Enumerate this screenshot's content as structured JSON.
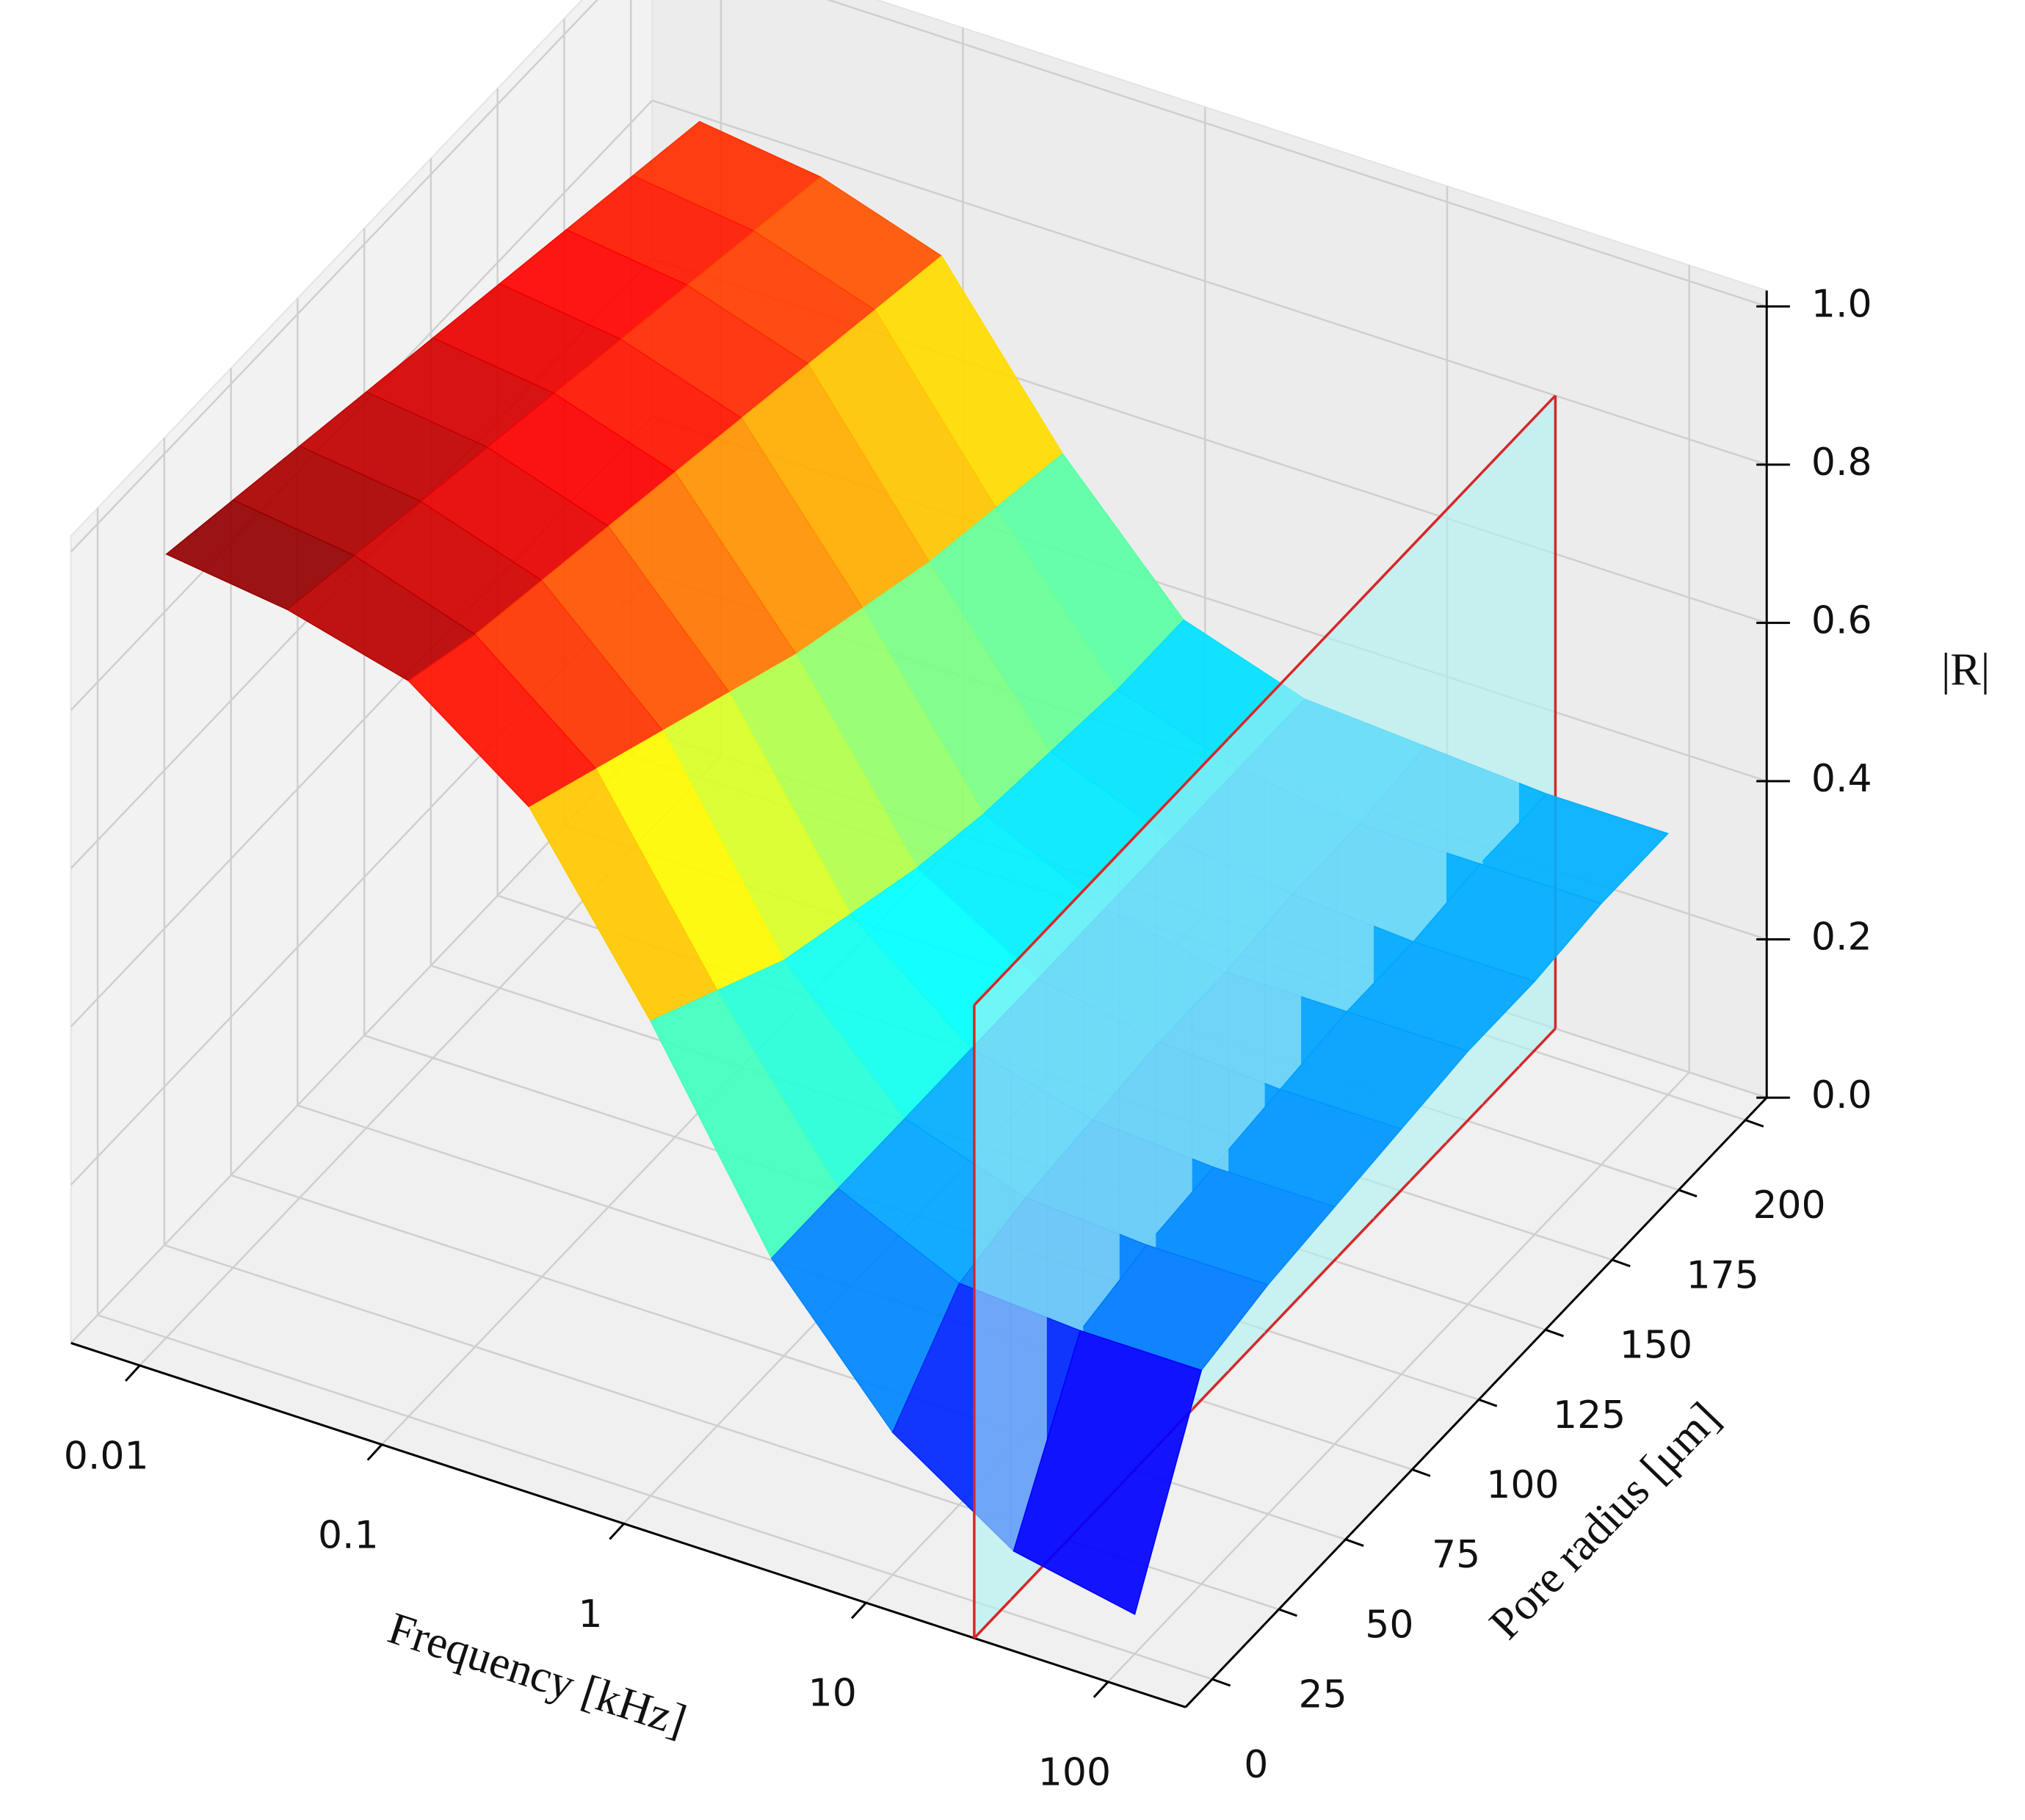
{
  "chart_data": {
    "type": "surface3d",
    "xlabel": "Frequency [kHz]",
    "ylabel": "Pore radius [μm]",
    "zlabel": "|R|",
    "xscale": "log",
    "xlim": [
      0.0052,
      209
    ],
    "ylim": [
      -10,
      208
    ],
    "zlim": [
      0,
      1.02
    ],
    "xticks": [
      0.01,
      0.1,
      1,
      10,
      100
    ],
    "yticks": [
      0,
      25,
      50,
      75,
      100,
      125,
      150,
      175,
      200
    ],
    "zticks": [
      {
        "value": 0,
        "label": "0.0"
      },
      0.2,
      0.4,
      0.6,
      0.8,
      {
        "value": 1,
        "label": "1.0"
      }
    ],
    "grid": true,
    "colormap": "jet",
    "x": [
      0.01,
      0.0316,
      0.1,
      0.316,
      1,
      3.16,
      10,
      31.6,
      100
    ],
    "y": [
      0,
      25,
      50,
      75,
      100,
      125,
      150,
      175,
      200
    ],
    "z": [
      [
        0.99,
        0.97,
        0.93,
        0.82,
        0.6,
        0.35,
        0.18,
        0.08,
        0.05
      ],
      [
        0.97,
        0.95,
        0.9,
        0.78,
        0.55,
        0.35,
        0.28,
        0.27,
        0.27
      ],
      [
        0.95,
        0.93,
        0.88,
        0.74,
        0.5,
        0.35,
        0.3,
        0.29,
        0.29
      ],
      [
        0.93,
        0.91,
        0.86,
        0.7,
        0.47,
        0.35,
        0.31,
        0.3,
        0.3
      ],
      [
        0.91,
        0.89,
        0.84,
        0.66,
        0.44,
        0.35,
        0.32,
        0.31,
        0.31
      ],
      [
        0.89,
        0.87,
        0.82,
        0.63,
        0.42,
        0.35,
        0.32,
        0.32,
        0.32
      ],
      [
        0.87,
        0.85,
        0.8,
        0.6,
        0.41,
        0.35,
        0.33,
        0.32,
        0.32
      ],
      [
        0.85,
        0.83,
        0.78,
        0.58,
        0.4,
        0.35,
        0.33,
        0.33,
        0.33
      ],
      [
        0.83,
        0.81,
        0.76,
        0.56,
        0.4,
        0.35,
        0.34,
        0.33,
        0.33
      ]
    ],
    "slice_plane": {
      "x": 28,
      "z": [
        0,
        0.8
      ],
      "color": "#aef2f2",
      "edge_color": "#d62728"
    }
  }
}
